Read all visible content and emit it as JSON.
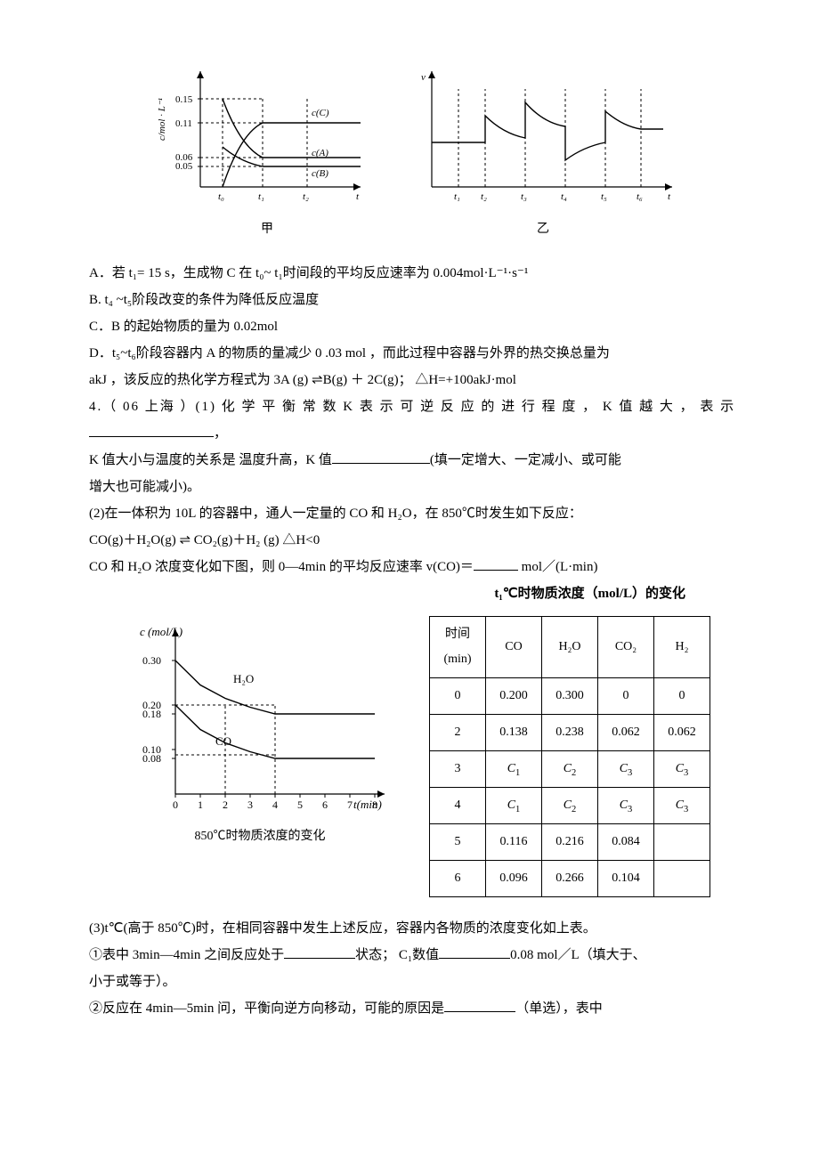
{
  "fig1": {
    "yaxis_label": "c/mol · L⁻¹",
    "yticks": [
      "0.05",
      "0.06",
      "0.11",
      "0.15"
    ],
    "xticks": [
      "t₀",
      "t₁",
      "t₂"
    ],
    "xaxis_label": "t",
    "curves": [
      "c(C)",
      "c(A)",
      "c(B)"
    ],
    "caption": "甲"
  },
  "fig2": {
    "yaxis_label": "v",
    "xticks": [
      "t₁",
      "t₂",
      "t₃",
      "t₄",
      "t₅",
      "t₆"
    ],
    "xaxis_label": "t",
    "caption": "乙"
  },
  "opts": {
    "A": "A．若 t₁= 15 s，生成物 C 在 t₀~ t₁时间段的平均反应速率为 0.004mol·L⁻¹·s⁻¹",
    "B": "B. t₄ ~t₅阶段改变的条件为降低反应温度",
    "C": "C．B 的起始物质的量为 0.02mol",
    "D1": "D．t₅~t₆阶段容器内 A 的物质的量减少 0 .03 mol ，而此过程中容器与外界的热交换总量为",
    "D2_pre": "akJ ，该反应的热化学方程式为 3A (g) ",
    "D2_eq": "⇌",
    "D2_post": "B(g) ＋ 2C(g)； △H=+100akJ·mol"
  },
  "q4": {
    "head": "4.（ 06 上海 ）(1) 化 学 平 衡 常 数 K 表 示 可 逆 反 应 的 进 行 程 度 ， K 值 越 大 ， 表 示",
    "blankline": "，",
    "k_rel_pre": "K 值大小与温度的关系是 温度升高，K 值",
    "k_rel_post": "(填一定增大、一定减小、或可能",
    "k_rel_tail": "增大也可能减小)。",
    "p2": "(2)在一体积为 10L 的容器中，通人一定量的 CO 和 H₂O，在 850℃时发生如下反应：",
    "eq_pre": "CO(g)＋H₂O(g) ",
    "eq_arrow": "⇌",
    "eq_post": " CO₂(g)＋H₂ (g)      △H<0",
    "p2b_pre": "CO 和 H₂O 浓度变化如下图，则 0—4min 的平均反应速率 v(CO)＝",
    "p2b_post": " mol／(L·min)"
  },
  "chart": {
    "yaxis": "c (mol/L)",
    "yticks": [
      "0.08",
      "0.10",
      "0.18",
      "0.20",
      "0.30"
    ],
    "ytick_pos": [
      0.08,
      0.1,
      0.18,
      0.2,
      0.3
    ],
    "xticks": [
      "0",
      "1",
      "2",
      "3",
      "4",
      "5",
      "6",
      "7",
      "8"
    ],
    "xaxis": "t(min)",
    "series_h2o": "H₂O",
    "series_co": "CO",
    "caption": "850℃时物质浓度的变化",
    "h2o_pts": [
      [
        0,
        0.3
      ],
      [
        1,
        0.245
      ],
      [
        2,
        0.215
      ],
      [
        3,
        0.195
      ],
      [
        4,
        0.18
      ],
      [
        5,
        0.18
      ],
      [
        6,
        0.18
      ],
      [
        7,
        0.18
      ],
      [
        8,
        0.18
      ]
    ],
    "co_pts": [
      [
        0,
        0.2
      ],
      [
        1,
        0.145
      ],
      [
        2,
        0.115
      ],
      [
        3,
        0.095
      ],
      [
        4,
        0.08
      ],
      [
        5,
        0.08
      ],
      [
        6,
        0.08
      ],
      [
        7,
        0.08
      ],
      [
        8,
        0.08
      ]
    ],
    "axis_color": "#000",
    "background": "#fff"
  },
  "table": {
    "title": "t₁℃时物质浓度（mol/L）的变化",
    "head": [
      "时间\n(min)",
      "CO",
      "H₂O",
      "CO₂",
      "H₂"
    ],
    "rows": [
      [
        "0",
        "0.200",
        "0.300",
        "0",
        "0"
      ],
      [
        "2",
        "0.138",
        "0.238",
        "0.062",
        "0.062"
      ],
      [
        "3",
        "C₁",
        "C₂",
        "C₃",
        "C₃"
      ],
      [
        "4",
        "C₁",
        "C₂",
        "C₃",
        "C₃"
      ],
      [
        "5",
        "0.116",
        "0.216",
        "0.084",
        ""
      ],
      [
        "6",
        "0.096",
        "0.266",
        "0.104",
        ""
      ]
    ]
  },
  "q3": {
    "intro": "(3)t℃(高于 850℃)时，在相同容器中发生上述反应，容器内各物质的浓度变化如上表。",
    "l1_a": "①表中 3min—4min 之间反应处于",
    "l1_b": "状态； C₁数值",
    "l1_c": "0.08 mol／L（填大于、",
    "l1_tail": "小于或等于）。",
    "l2_a": "②反应在 4min—5min 问，平衡向逆方向移动，可能的原因是",
    "l2_b": "（单选），表中"
  }
}
